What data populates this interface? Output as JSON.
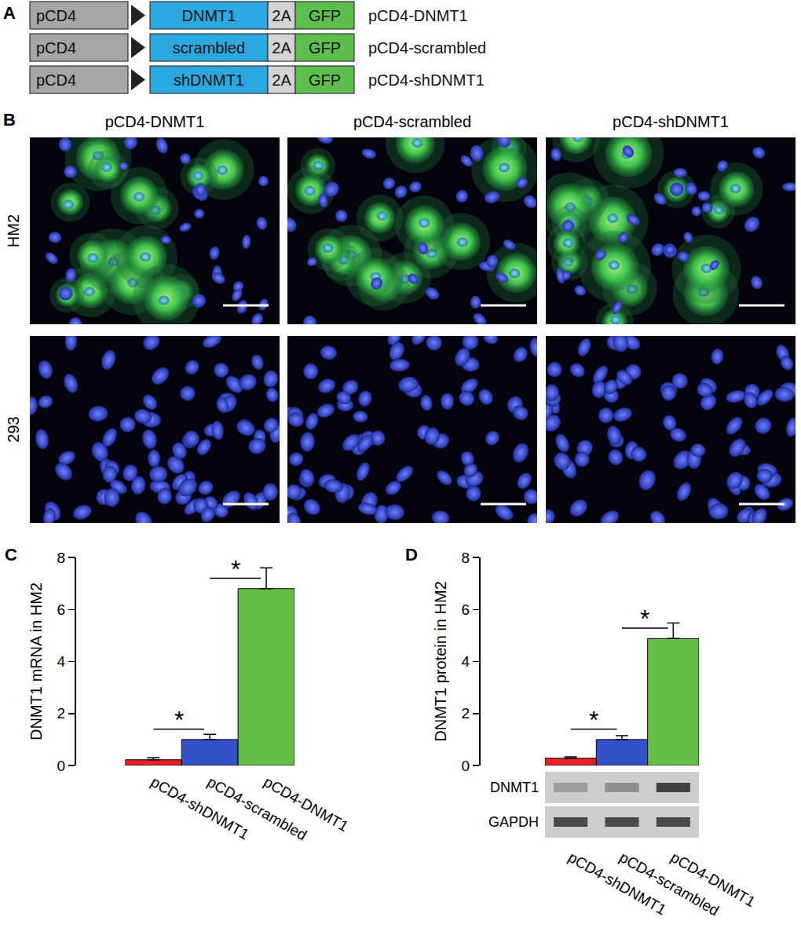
{
  "panels": {
    "A": {
      "label": "A",
      "constructs": [
        {
          "parts": [
            "pCD4",
            "DNMT1",
            "2A",
            "GFP"
          ],
          "name": "pCD4-DNMT1"
        },
        {
          "parts": [
            "pCD4",
            "scrambled",
            "2A",
            "GFP"
          ],
          "name": "pCD4-scrambled"
        },
        {
          "parts": [
            "pCD4",
            "shDNMT1",
            "2A",
            "GFP"
          ],
          "name": "pCD4-shDNMT1"
        }
      ]
    },
    "B": {
      "label": "B",
      "columns": [
        "pCD4-DNMT1",
        "pCD4-scrambled",
        "pCD4-shDNMT1"
      ],
      "rows": [
        "HM2",
        "293"
      ]
    }
  },
  "chart_data": [
    {
      "panel_label": "C",
      "type": "bar",
      "categories": [
        "pCD4-shDNMT1",
        "pCD4-scrambled",
        "pCD4-DNMT1"
      ],
      "values": [
        0.22,
        1.0,
        6.8
      ],
      "errors": [
        0.08,
        0.2,
        0.8
      ],
      "colors": [
        "#eb1e23",
        "#3450c8",
        "#64be46"
      ],
      "ylabel": "DNMT1 mRNA in HM2",
      "ylim": [
        0,
        8
      ],
      "yticks": [
        0,
        2,
        4,
        6,
        8
      ],
      "grid": false,
      "significance": [
        {
          "pair": [
            "pCD4-shDNMT1",
            "pCD4-scrambled"
          ],
          "label": "*"
        },
        {
          "pair": [
            "pCD4-scrambled",
            "pCD4-DNMT1"
          ],
          "label": "*"
        }
      ]
    },
    {
      "panel_label": "D",
      "type": "bar",
      "categories": [
        "pCD4-shDNMT1",
        "pCD4-scrambled",
        "pCD4-DNMT1"
      ],
      "values": [
        0.28,
        1.0,
        4.88
      ],
      "errors": [
        0.05,
        0.15,
        0.6
      ],
      "colors": [
        "#eb1e23",
        "#3450c8",
        "#64be46"
      ],
      "ylabel": "DNMT1 protein in HM2",
      "ylim": [
        0,
        8
      ],
      "yticks": [
        0,
        2,
        4,
        6,
        8
      ],
      "grid": false,
      "significance": [
        {
          "pair": [
            "pCD4-shDNMT1",
            "pCD4-scrambled"
          ],
          "label": "*"
        },
        {
          "pair": [
            "pCD4-scrambled",
            "pCD4-DNMT1"
          ],
          "label": "*"
        }
      ],
      "blot_rows": [
        "DNMT1",
        "GAPDH"
      ]
    }
  ]
}
